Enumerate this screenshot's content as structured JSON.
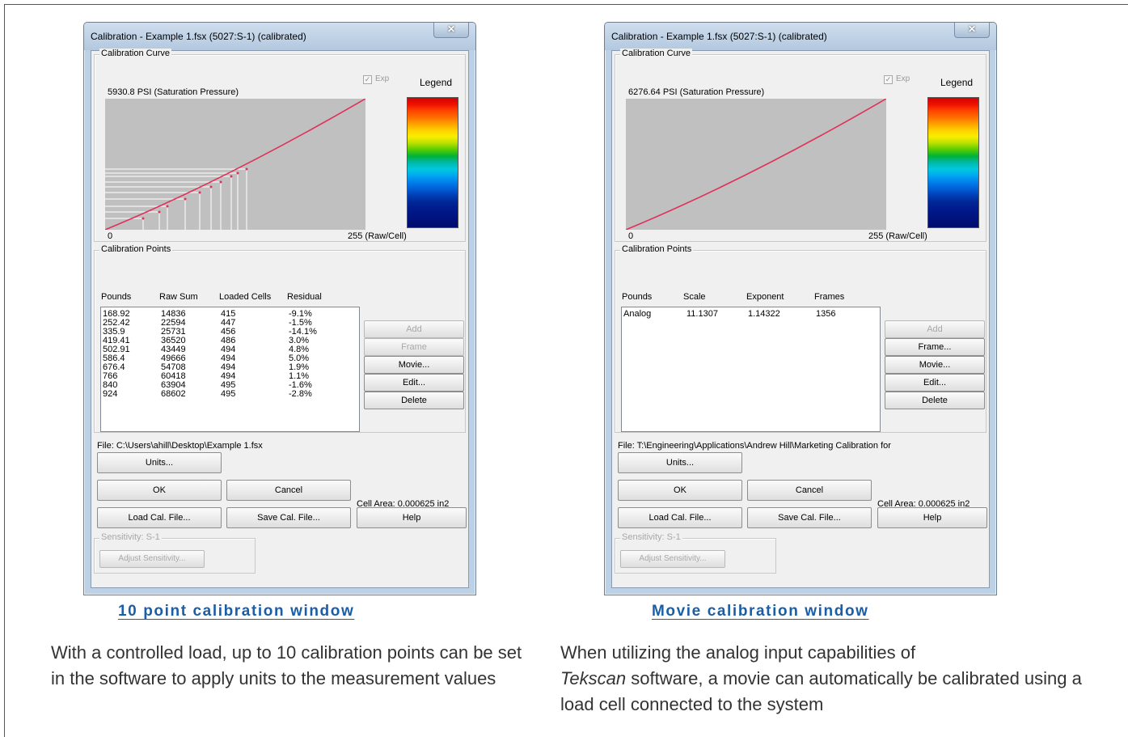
{
  "left_window": {
    "title": "Calibration - Example 1.fsx (5027:S-1) (calibrated)",
    "close_glyph": "✕",
    "curve_group": "Calibration Curve",
    "exp_label": "Exp",
    "legend_label": "Legend",
    "saturation": "5930.8 PSI (Saturation Pressure)",
    "axis_min": "0",
    "axis_max": "255 (Raw/Cell)",
    "points_group": "Calibration Points",
    "columns": [
      "Pounds",
      "Raw Sum",
      "Loaded Cells",
      "Residual"
    ],
    "rows": [
      [
        "168.92",
        "14836",
        "415",
        "-9.1%"
      ],
      [
        "252.42",
        "22594",
        "447",
        "-1.5%"
      ],
      [
        "335.9",
        "25731",
        "456",
        "-14.1%"
      ],
      [
        "419.41",
        "36520",
        "486",
        "3.0%"
      ],
      [
        "502.91",
        "43449",
        "494",
        "4.8%"
      ],
      [
        "586.4",
        "49666",
        "494",
        "5.0%"
      ],
      [
        "676.4",
        "54708",
        "494",
        "1.9%"
      ],
      [
        "766",
        "60418",
        "494",
        "1.1%"
      ],
      [
        "840",
        "63904",
        "495",
        "-1.6%"
      ],
      [
        "924",
        "68602",
        "495",
        "-2.8%"
      ]
    ],
    "side_buttons": [
      "Add",
      "Frame",
      "Movie...",
      "Edit...",
      "Delete"
    ],
    "file": "File: C:\\Users\\ahill\\Desktop\\Example 1.fsx",
    "units_button": "Units...",
    "ok_button": "OK",
    "cancel_button": "Cancel",
    "load_button": "Load Cal. File...",
    "save_button": "Save Cal. File...",
    "help_button": "Help",
    "cell_area": "Cell Area: 0.000625 in2",
    "sensitivity_group": "Sensitivity: S-1",
    "adjust_button": "Adjust Sensitivity..."
  },
  "right_window": {
    "title": "Calibration - Example 1.fsx (5027:S-1) (calibrated)",
    "close_glyph": "✕",
    "curve_group": "Calibration Curve",
    "exp_label": "Exp",
    "legend_label": "Legend",
    "saturation": "6276.64 PSI (Saturation Pressure)",
    "axis_min": "0",
    "axis_max": "255 (Raw/Cell)",
    "points_group": "Calibration Points",
    "columns": [
      "Pounds",
      "Scale",
      "Exponent",
      "Frames"
    ],
    "rows": [
      [
        "Analog",
        "11.1307",
        "1.14322",
        "1356"
      ]
    ],
    "side_buttons": [
      "Add",
      "Frame...",
      "Movie...",
      "Edit...",
      "Delete"
    ],
    "file": "File: T:\\Engineering\\Applications\\Andrew Hill\\Marketing Calibration for",
    "units_button": "Units...",
    "ok_button": "OK",
    "cancel_button": "Cancel",
    "load_button": "Load Cal. File...",
    "save_button": "Save Cal. File...",
    "help_button": "Help",
    "cell_area": "Cell Area: 0.000625 in2",
    "sensitivity_group": "Sensitivity: S-1",
    "adjust_button": "Adjust Sensitivity..."
  },
  "captions": {
    "left_title": "10 point calibration window",
    "left_text": "With a controlled load, up to 10 calibration points can be set in the software to apply units to the measurement values",
    "right_title": "Movie calibration window",
    "right_text_prefix": "When utilizing the analog input capabilities of",
    "right_text_brand": "Tekscan",
    "right_text_suffix": "software, a movie can automatically be calibrated using a load cell connected to the system"
  },
  "colors": {
    "caption": "#1a5ea8",
    "curve": "#e0305a",
    "window_frame": "#bcd0e6"
  }
}
